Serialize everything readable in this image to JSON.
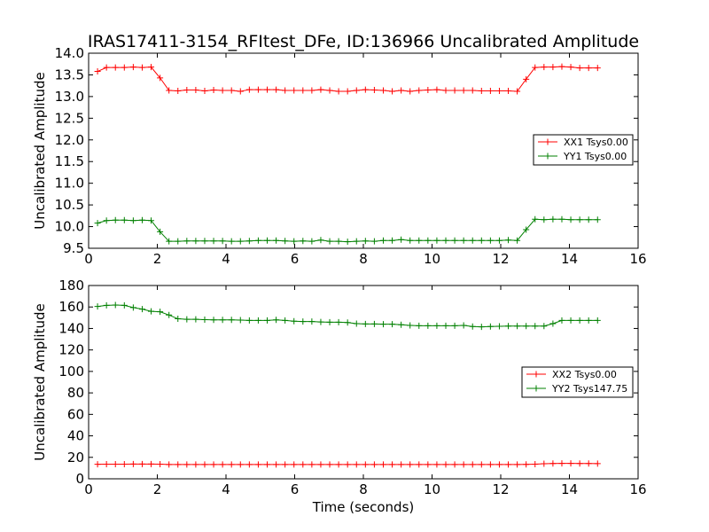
{
  "figure_title": "IRAS17411-3154_RFItest_DFe, ID:136966 Uncalibrated Amplitude",
  "colors": {
    "red": "#ff0000",
    "green": "#008000"
  },
  "chart_data": [
    {
      "type": "line",
      "xlabel": "",
      "ylabel": "Uncalibrated Amplitude",
      "xlim": [
        0,
        16
      ],
      "ylim": [
        9.5,
        14.0
      ],
      "xticks": [
        "0",
        "2",
        "4",
        "6",
        "8",
        "10",
        "12",
        "14",
        "16"
      ],
      "yticks": [
        "9.5",
        "10.0",
        "10.5",
        "11.0",
        "11.5",
        "12.0",
        "12.5",
        "13.0",
        "13.5",
        "14.0"
      ],
      "grid": false,
      "legend_position": "right",
      "x": [
        0.26,
        0.52,
        0.78,
        1.04,
        1.3,
        1.56,
        1.82,
        2.08,
        2.34,
        2.6,
        2.86,
        3.12,
        3.38,
        3.64,
        3.9,
        4.16,
        4.42,
        4.68,
        4.94,
        5.2,
        5.46,
        5.72,
        5.98,
        6.24,
        6.5,
        6.76,
        7.02,
        7.28,
        7.54,
        7.8,
        8.06,
        8.32,
        8.58,
        8.84,
        9.1,
        9.36,
        9.62,
        9.88,
        10.14,
        10.4,
        10.66,
        10.92,
        11.18,
        11.44,
        11.7,
        11.96,
        12.22,
        12.48,
        12.74,
        13.0,
        13.26,
        13.52,
        13.78,
        14.04,
        14.3,
        14.56,
        14.82
      ],
      "series": [
        {
          "name": "XX1 Tsys0.00",
          "color": "#ff0000",
          "values": [
            13.58,
            13.67,
            13.67,
            13.67,
            13.68,
            13.67,
            13.68,
            13.43,
            13.14,
            13.13,
            13.15,
            13.15,
            13.13,
            13.15,
            13.14,
            13.14,
            13.12,
            13.16,
            13.16,
            13.16,
            13.16,
            13.14,
            13.14,
            13.14,
            13.14,
            13.16,
            13.14,
            13.12,
            13.12,
            13.14,
            13.16,
            13.15,
            13.14,
            13.12,
            13.14,
            13.12,
            13.14,
            13.15,
            13.16,
            13.14,
            13.14,
            13.14,
            13.14,
            13.13,
            13.13,
            13.13,
            13.13,
            13.12,
            13.4,
            13.67,
            13.68,
            13.68,
            13.69,
            13.68,
            13.66,
            13.66,
            13.66
          ]
        },
        {
          "name": "YY1 Tsys0.00",
          "color": "#008000",
          "values": [
            10.08,
            10.14,
            10.15,
            10.15,
            10.14,
            10.15,
            10.14,
            9.88,
            9.66,
            9.66,
            9.67,
            9.67,
            9.67,
            9.67,
            9.67,
            9.66,
            9.66,
            9.67,
            9.68,
            9.68,
            9.68,
            9.67,
            9.66,
            9.67,
            9.66,
            9.69,
            9.66,
            9.66,
            9.65,
            9.66,
            9.67,
            9.66,
            9.68,
            9.68,
            9.7,
            9.68,
            9.68,
            9.68,
            9.68,
            9.68,
            9.68,
            9.68,
            9.68,
            9.68,
            9.68,
            9.68,
            9.69,
            9.68,
            9.93,
            10.17,
            10.16,
            10.17,
            10.17,
            10.16,
            10.16,
            10.16,
            10.16
          ]
        }
      ]
    },
    {
      "type": "line",
      "xlabel": "Time (seconds)",
      "ylabel": "Uncalibrated Amplitude",
      "xlim": [
        0,
        16
      ],
      "ylim": [
        0,
        180
      ],
      "xticks": [
        "0",
        "2",
        "4",
        "6",
        "8",
        "10",
        "12",
        "14",
        "16"
      ],
      "yticks": [
        "0",
        "20",
        "40",
        "60",
        "80",
        "100",
        "120",
        "140",
        "160",
        "180"
      ],
      "grid": false,
      "legend_position": "right",
      "x": [
        0.26,
        0.52,
        0.78,
        1.04,
        1.3,
        1.56,
        1.82,
        2.08,
        2.34,
        2.6,
        2.86,
        3.12,
        3.38,
        3.64,
        3.9,
        4.16,
        4.42,
        4.68,
        4.94,
        5.2,
        5.46,
        5.72,
        5.98,
        6.24,
        6.5,
        6.76,
        7.02,
        7.28,
        7.54,
        7.8,
        8.06,
        8.32,
        8.58,
        8.84,
        9.1,
        9.36,
        9.62,
        9.88,
        10.14,
        10.4,
        10.66,
        10.92,
        11.18,
        11.44,
        11.7,
        11.96,
        12.22,
        12.48,
        12.74,
        13.0,
        13.26,
        13.52,
        13.78,
        14.04,
        14.3,
        14.56,
        14.82
      ],
      "series": [
        {
          "name": "XX2 Tsys0.00",
          "color": "#ff0000",
          "values": [
            13.5,
            13.6,
            13.6,
            13.6,
            13.7,
            13.7,
            13.7,
            13.6,
            13.3,
            13.3,
            13.3,
            13.3,
            13.3,
            13.3,
            13.3,
            13.3,
            13.3,
            13.3,
            13.3,
            13.3,
            13.3,
            13.3,
            13.3,
            13.3,
            13.3,
            13.3,
            13.3,
            13.3,
            13.3,
            13.3,
            13.3,
            13.3,
            13.3,
            13.3,
            13.3,
            13.3,
            13.3,
            13.3,
            13.3,
            13.3,
            13.3,
            13.3,
            13.3,
            13.3,
            13.3,
            13.3,
            13.3,
            13.3,
            13.4,
            13.6,
            14.0,
            14.2,
            14.3,
            14.3,
            14.2,
            14.2,
            14.1
          ]
        },
        {
          "name": "YY2 Tsys147.75",
          "color": "#008000",
          "values": [
            160.5,
            161.5,
            161.8,
            161.5,
            159.5,
            158.0,
            156.0,
            155.5,
            152.5,
            149.0,
            148.5,
            148.5,
            148.2,
            148.0,
            148.0,
            148.0,
            147.8,
            147.5,
            147.5,
            147.5,
            148.0,
            147.5,
            146.8,
            146.5,
            146.5,
            146.0,
            145.8,
            145.8,
            145.5,
            144.5,
            144.2,
            144.2,
            144.0,
            144.0,
            143.5,
            142.8,
            142.5,
            142.5,
            142.5,
            142.5,
            142.5,
            142.8,
            141.8,
            141.5,
            141.8,
            142.0,
            142.2,
            142.2,
            142.2,
            142.2,
            142.2,
            144.5,
            147.5,
            147.5,
            147.5,
            147.5,
            147.5
          ]
        }
      ]
    }
  ]
}
